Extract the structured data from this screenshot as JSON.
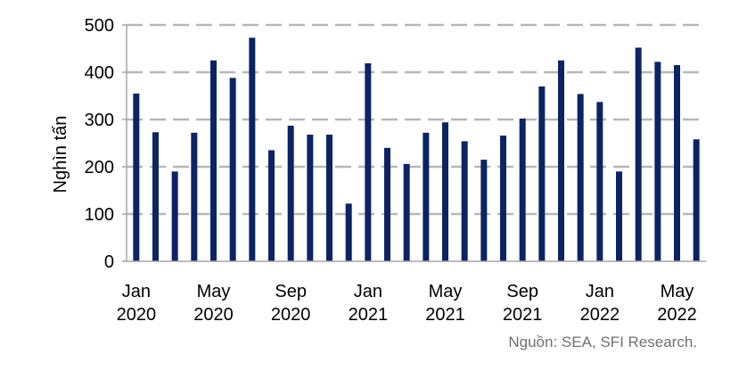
{
  "chart_data": {
    "type": "bar",
    "categories": [
      "Jan 2020",
      "Feb 2020",
      "Mar 2020",
      "Apr 2020",
      "May 2020",
      "Jun 2020",
      "Jul 2020",
      "Aug 2020",
      "Sep 2020",
      "Oct 2020",
      "Nov 2020",
      "Dec 2020",
      "Jan 2021",
      "Feb 2021",
      "Mar 2021",
      "Apr 2021",
      "May 2021",
      "Jun 2021",
      "Jul 2021",
      "Aug 2021",
      "Sep 2021",
      "Oct 2021",
      "Nov 2021",
      "Dec 2021",
      "Jan 2022",
      "Feb 2022",
      "Mar 2022",
      "Apr 2022",
      "May 2022",
      "Jun 2022"
    ],
    "values": [
      355,
      273,
      190,
      272,
      425,
      388,
      473,
      235,
      287,
      268,
      268,
      122,
      419,
      240,
      206,
      272,
      294,
      254,
      215,
      266,
      302,
      370,
      425,
      354,
      337,
      190,
      452,
      422,
      415,
      258
    ],
    "ylabel": "Nghìn tấn",
    "ylim": [
      0,
      500
    ],
    "yticks": [
      "0",
      "100",
      "200",
      "300",
      "400",
      "500"
    ],
    "xtick_labels": [
      {
        "index": 0,
        "line1": "Jan",
        "line2": "2020"
      },
      {
        "index": 4,
        "line1": "May",
        "line2": "2020"
      },
      {
        "index": 8,
        "line1": "Sep",
        "line2": "2020"
      },
      {
        "index": 12,
        "line1": "Jan",
        "line2": "2021"
      },
      {
        "index": 16,
        "line1": "May",
        "line2": "2021"
      },
      {
        "index": 20,
        "line1": "Sep",
        "line2": "2021"
      },
      {
        "index": 24,
        "line1": "Jan",
        "line2": "2022"
      },
      {
        "index": 28,
        "line1": "May",
        "line2": "2022"
      }
    ],
    "grid": true,
    "bar_color": "#0c2463",
    "grid_color": "#b7b7b7",
    "axis_color": "#a6a6a6"
  },
  "source": "Nguồn: SEA, SFI Research."
}
